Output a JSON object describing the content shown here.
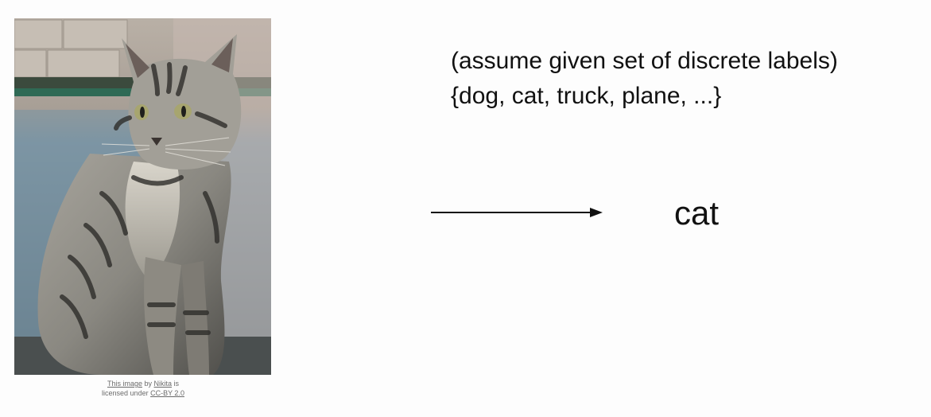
{
  "photo": {
    "subject": "cat-photo"
  },
  "credit": {
    "image_link": "This image",
    "by": "by",
    "author": "Nikita",
    "is_licensed": "is",
    "licensed_under": "licensed under",
    "license": "CC-BY 2.0"
  },
  "text": {
    "assume": "(assume given set of discrete labels)",
    "labels": "{dog, cat, truck, plane, ...}"
  },
  "output": {
    "label": "cat"
  },
  "colors": {
    "text": "#111111",
    "credit": "#6b6b6b"
  }
}
